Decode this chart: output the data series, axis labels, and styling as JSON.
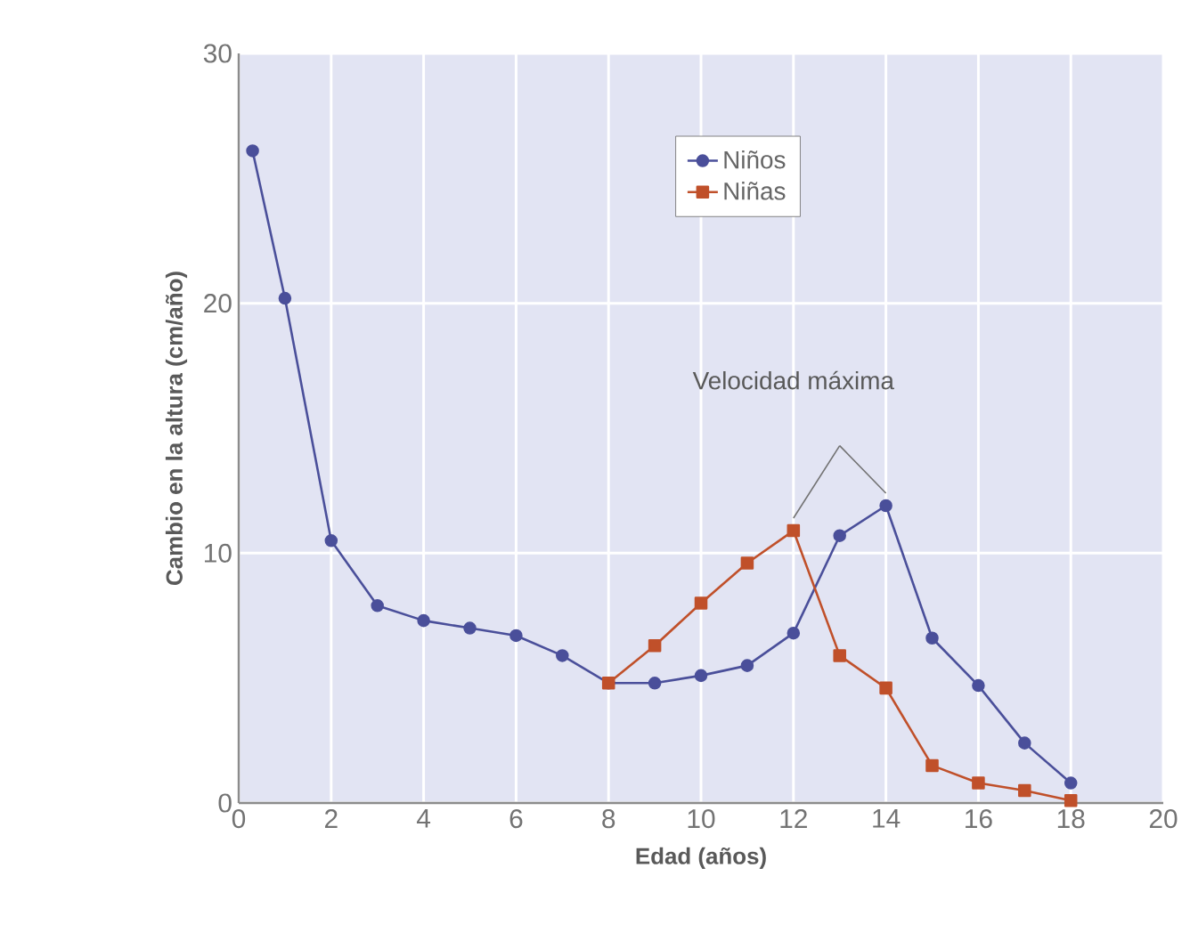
{
  "chart_data": {
    "type": "line",
    "xlabel": "Edad (años)",
    "ylabel": "Cambio en la altura (cm/año)",
    "xlim": [
      0,
      20
    ],
    "ylim": [
      0,
      30
    ],
    "xticks": [
      0,
      2,
      4,
      6,
      8,
      10,
      12,
      14,
      16,
      18,
      20
    ],
    "yticks": [
      0,
      10,
      20,
      30
    ],
    "grid": true,
    "legend": "top",
    "line_style": "solid",
    "annotations": [
      "Velocidad máxima"
    ],
    "series": [
      {
        "name": "Niños",
        "color": "#4a4f9a",
        "marker": "circle",
        "x": [
          0.3,
          1,
          2,
          3,
          4,
          5,
          6,
          7,
          8,
          9,
          10,
          11,
          12,
          13,
          14,
          15,
          16,
          17,
          18
        ],
        "values": [
          26.1,
          20.2,
          10.5,
          7.9,
          7.3,
          7.0,
          6.7,
          5.9,
          4.8,
          4.8,
          5.1,
          5.5,
          6.8,
          10.7,
          11.9,
          6.6,
          4.7,
          2.4,
          0.8
        ]
      },
      {
        "name": "Niñas",
        "color": "#c0502a",
        "marker": "square",
        "x": [
          8,
          9,
          10,
          11,
          12,
          13,
          14,
          15,
          16,
          17,
          18
        ],
        "values": [
          4.8,
          6.3,
          8.0,
          9.6,
          10.9,
          5.9,
          4.6,
          1.5,
          0.8,
          0.5,
          0.1
        ]
      }
    ]
  }
}
